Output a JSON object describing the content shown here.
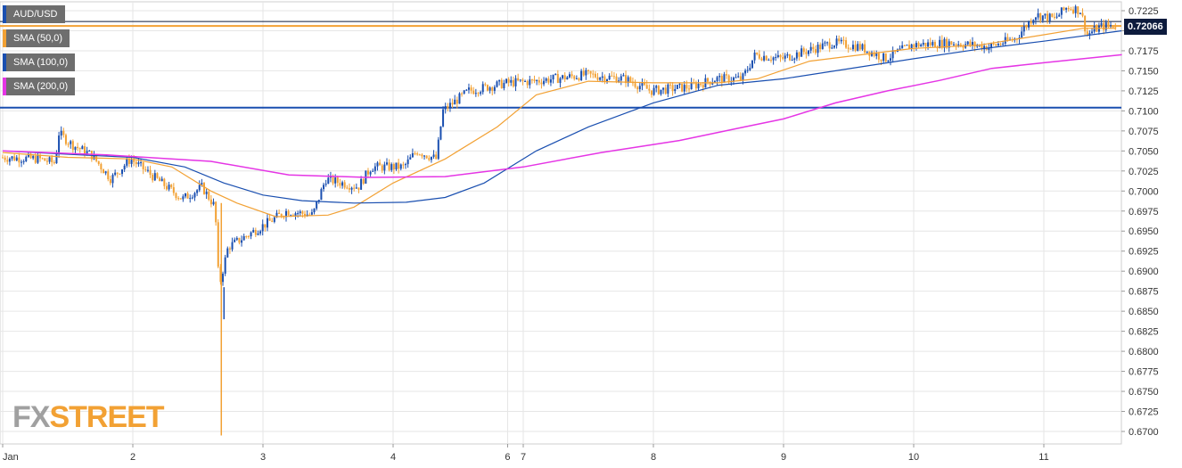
{
  "legend": [
    {
      "label": "AUD/USD",
      "color": "#1a4fb0"
    },
    {
      "label": "SMA (50,0)",
      "color": "#f2a134"
    },
    {
      "label": "SMA (100,0)",
      "color": "#1a4fb0"
    },
    {
      "label": "SMA (200,0)",
      "color": "#e535e5"
    }
  ],
  "price_badge": "0.72066",
  "watermark": {
    "fx": "FX",
    "street": "STREET"
  },
  "colors": {
    "bull": "#1a4fb0",
    "bear": "#f2a134",
    "sma50": "#f2a134",
    "sma100": "#1a4fb0",
    "sma200": "#e535e5",
    "level_line_support": "#1a4fb0",
    "level_line_resistance": "#f2a134",
    "grid": "#e6e6e6"
  },
  "chart_data": {
    "type": "line",
    "title": "AUD/USD",
    "y_ticks": [
      "0.7225",
      "0.7200",
      "0.7175",
      "0.7150",
      "0.7125",
      "0.7100",
      "0.7075",
      "0.7050",
      "0.7025",
      "0.7000",
      "0.6975",
      "0.6950",
      "0.6925",
      "0.6900",
      "0.6875",
      "0.6850",
      "0.6825",
      "0.6800",
      "0.6775",
      "0.6750",
      "0.6725",
      "0.6700"
    ],
    "ylim": [
      0.6695,
      0.7235
    ],
    "x_ticks": [
      {
        "label": "Jan",
        "x": 0
      },
      {
        "label": "2",
        "x": 1
      },
      {
        "label": "3",
        "x": 2
      },
      {
        "label": "4",
        "x": 3
      },
      {
        "label": "6",
        "x": 3.88
      },
      {
        "label": "7",
        "x": 4
      },
      {
        "label": "8",
        "x": 5
      },
      {
        "label": "9",
        "x": 6
      },
      {
        "label": "10",
        "x": 7
      },
      {
        "label": "11",
        "x": 8
      }
    ],
    "xlim": [
      0,
      8.8
    ],
    "grid": true,
    "horizontal_levels": [
      {
        "value": 0.7104,
        "kind": "support"
      },
      {
        "value": 0.7206,
        "kind": "resistance"
      }
    ],
    "price_path": [
      [
        0.0,
        0.7042
      ],
      [
        0.3,
        0.704
      ],
      [
        0.42,
        0.7035
      ],
      [
        0.45,
        0.7072
      ],
      [
        0.55,
        0.7058
      ],
      [
        0.7,
        0.7045
      ],
      [
        0.85,
        0.7015
      ],
      [
        1.0,
        0.704
      ],
      [
        1.2,
        0.7015
      ],
      [
        1.4,
        0.699
      ],
      [
        1.55,
        0.7005
      ],
      [
        1.65,
        0.698
      ],
      [
        1.68,
        0.688
      ],
      [
        1.75,
        0.693
      ],
      [
        2.0,
        0.6955
      ],
      [
        2.2,
        0.6975
      ],
      [
        2.4,
        0.697
      ],
      [
        2.5,
        0.7015
      ],
      [
        2.75,
        0.7005
      ],
      [
        2.85,
        0.703
      ],
      [
        3.1,
        0.703
      ],
      [
        3.2,
        0.705
      ],
      [
        3.35,
        0.704
      ],
      [
        3.4,
        0.71
      ],
      [
        3.6,
        0.7125
      ],
      [
        3.9,
        0.7135
      ],
      [
        4.1,
        0.7137
      ],
      [
        4.5,
        0.7145
      ],
      [
        4.8,
        0.714
      ],
      [
        5.0,
        0.7125
      ],
      [
        5.3,
        0.713
      ],
      [
        5.5,
        0.714
      ],
      [
        5.7,
        0.714
      ],
      [
        5.8,
        0.717
      ],
      [
        6.0,
        0.7165
      ],
      [
        6.2,
        0.7175
      ],
      [
        6.4,
        0.7185
      ],
      [
        6.6,
        0.718
      ],
      [
        6.8,
        0.7165
      ],
      [
        7.0,
        0.7182
      ],
      [
        7.3,
        0.7185
      ],
      [
        7.6,
        0.718
      ],
      [
        7.8,
        0.719
      ],
      [
        7.95,
        0.722
      ],
      [
        8.1,
        0.7215
      ],
      [
        8.2,
        0.723
      ],
      [
        8.3,
        0.7225
      ],
      [
        8.35,
        0.7195
      ],
      [
        8.45,
        0.7205
      ],
      [
        8.55,
        0.7207
      ]
    ],
    "spike_low": {
      "x": 1.68,
      "value": 0.6695
    },
    "series": [
      {
        "name": "SMA (50,0)",
        "points": [
          [
            0.0,
            0.7048
          ],
          [
            0.5,
            0.7042
          ],
          [
            1.0,
            0.704
          ],
          [
            1.3,
            0.703
          ],
          [
            1.6,
            0.7
          ],
          [
            1.8,
            0.6985
          ],
          [
            2.1,
            0.6968
          ],
          [
            2.5,
            0.697
          ],
          [
            2.7,
            0.698
          ],
          [
            3.0,
            0.701
          ],
          [
            3.4,
            0.704
          ],
          [
            3.8,
            0.708
          ],
          [
            4.1,
            0.712
          ],
          [
            4.5,
            0.7137
          ],
          [
            5.0,
            0.7135
          ],
          [
            5.5,
            0.7135
          ],
          [
            5.8,
            0.714
          ],
          [
            6.2,
            0.7162
          ],
          [
            6.6,
            0.717
          ],
          [
            7.0,
            0.7178
          ],
          [
            7.5,
            0.7182
          ],
          [
            8.0,
            0.7195
          ],
          [
            8.3,
            0.7203
          ],
          [
            8.55,
            0.7203
          ]
        ]
      },
      {
        "name": "SMA (100,0)",
        "points": [
          [
            0.0,
            0.705
          ],
          [
            0.6,
            0.7045
          ],
          [
            1.0,
            0.7042
          ],
          [
            1.4,
            0.703
          ],
          [
            1.7,
            0.701
          ],
          [
            2.0,
            0.6995
          ],
          [
            2.3,
            0.6988
          ],
          [
            2.7,
            0.6985
          ],
          [
            3.1,
            0.6986
          ],
          [
            3.4,
            0.6992
          ],
          [
            3.7,
            0.701
          ],
          [
            4.1,
            0.705
          ],
          [
            4.5,
            0.708
          ],
          [
            5.0,
            0.711
          ],
          [
            5.5,
            0.7132
          ],
          [
            6.0,
            0.714
          ],
          [
            6.6,
            0.7155
          ],
          [
            7.0,
            0.7165
          ],
          [
            7.5,
            0.7177
          ],
          [
            8.0,
            0.7187
          ],
          [
            8.6,
            0.72
          ]
        ]
      },
      {
        "name": "SMA (200,0)",
        "points": [
          [
            0.0,
            0.705
          ],
          [
            0.8,
            0.7045
          ],
          [
            1.6,
            0.7037
          ],
          [
            2.2,
            0.702
          ],
          [
            2.8,
            0.7017
          ],
          [
            3.4,
            0.7018
          ],
          [
            4.0,
            0.703
          ],
          [
            4.6,
            0.7048
          ],
          [
            5.2,
            0.7063
          ],
          [
            5.7,
            0.708
          ],
          [
            6.0,
            0.709
          ],
          [
            6.4,
            0.711
          ],
          [
            6.8,
            0.7125
          ],
          [
            7.2,
            0.7138
          ],
          [
            7.6,
            0.7153
          ],
          [
            8.0,
            0.716
          ],
          [
            8.3,
            0.7165
          ],
          [
            8.6,
            0.717
          ]
        ]
      }
    ]
  }
}
